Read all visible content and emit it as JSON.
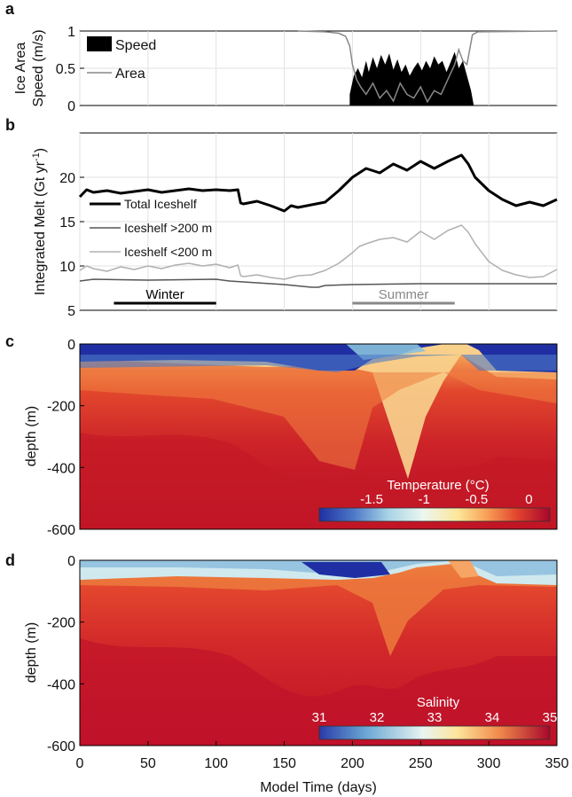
{
  "chart_data": [
    {
      "panel": "a",
      "type": "area",
      "ylabel_line1": "Ice Area",
      "ylabel_line2": "Speed (m/s)",
      "ylim": [
        0,
        1
      ],
      "yticks": [
        "0",
        "0.5",
        "1"
      ],
      "xlim": [
        0,
        350
      ],
      "grid": true,
      "legend_position": "top-left",
      "series": [
        {
          "name": "Speed",
          "style": "filled",
          "color": "#000000",
          "x": [
            198,
            201,
            204,
            207,
            210,
            212,
            215,
            218,
            221,
            224,
            227,
            230,
            233,
            236,
            239,
            242,
            245,
            248,
            251,
            254,
            257,
            260,
            263,
            266,
            269,
            272,
            275,
            278,
            281,
            284,
            287,
            289
          ],
          "y": [
            0.15,
            0.4,
            0.5,
            0.38,
            0.6,
            0.45,
            0.65,
            0.5,
            0.68,
            0.55,
            0.7,
            0.48,
            0.62,
            0.45,
            0.55,
            0.4,
            0.5,
            0.58,
            0.47,
            0.6,
            0.5,
            0.66,
            0.55,
            0.6,
            0.45,
            0.58,
            0.72,
            0.5,
            0.6,
            0.4,
            0.2,
            0.0
          ]
        },
        {
          "name": "Area",
          "style": "line",
          "color": "#888888",
          "x": [
            160,
            180,
            190,
            195,
            198,
            200,
            203,
            206,
            210,
            215,
            220,
            225,
            230,
            235,
            240,
            245,
            250,
            255,
            260,
            265,
            270,
            275,
            278,
            281,
            284,
            286,
            288,
            292,
            350
          ],
          "y": [
            1.0,
            0.99,
            0.97,
            0.93,
            0.8,
            0.55,
            0.35,
            0.25,
            0.15,
            0.3,
            0.1,
            0.2,
            0.06,
            0.3,
            0.15,
            0.1,
            0.25,
            0.05,
            0.2,
            0.15,
            0.35,
            0.55,
            0.75,
            0.6,
            0.55,
            0.75,
            0.95,
            0.99,
            1.0
          ]
        }
      ]
    },
    {
      "panel": "b",
      "type": "line",
      "ylabel": "Integrated Melt (Gt yr",
      "ylabel_exp": "-1",
      "ylabel_close": ")",
      "ylim": [
        5,
        25
      ],
      "yticks": [
        "5",
        "10",
        "15",
        "20"
      ],
      "xlim": [
        0,
        350
      ],
      "grid": true,
      "legend_position": "center-left",
      "series": [
        {
          "name": "Total Iceshelf",
          "color": "#000000",
          "x": [
            0,
            5,
            10,
            20,
            30,
            40,
            50,
            60,
            70,
            80,
            90,
            100,
            110,
            116,
            118,
            120,
            130,
            140,
            150,
            155,
            160,
            170,
            180,
            190,
            200,
            210,
            220,
            230,
            240,
            250,
            260,
            270,
            280,
            285,
            290,
            300,
            310,
            320,
            330,
            340,
            350
          ],
          "y": [
            17.8,
            18.6,
            18.3,
            18.5,
            18.2,
            18.4,
            18.6,
            18.3,
            18.5,
            18.7,
            18.5,
            18.6,
            18.5,
            18.6,
            17.1,
            17.0,
            17.3,
            16.8,
            16.2,
            16.8,
            16.6,
            16.9,
            17.2,
            18.5,
            20.0,
            21.0,
            20.5,
            21.5,
            20.8,
            21.8,
            21.0,
            21.8,
            22.5,
            21.5,
            20.0,
            18.5,
            17.5,
            16.8,
            17.2,
            16.8,
            17.5
          ]
        },
        {
          "name": "Iceshelf >200 m",
          "color": "#555555",
          "x": [
            0,
            10,
            50,
            100,
            110,
            120,
            150,
            170,
            175,
            180,
            200,
            250,
            300,
            350
          ],
          "y": [
            8.3,
            8.5,
            8.4,
            8.5,
            8.3,
            8.2,
            7.9,
            7.6,
            7.6,
            7.8,
            7.9,
            8.0,
            8.0,
            8.0
          ]
        },
        {
          "name": "Iceshelf <200 m",
          "color": "#b0b0b0",
          "x": [
            0,
            5,
            10,
            20,
            30,
            40,
            50,
            60,
            70,
            80,
            90,
            100,
            110,
            116,
            118,
            120,
            130,
            140,
            150,
            160,
            170,
            180,
            190,
            200,
            205,
            210,
            220,
            230,
            240,
            250,
            260,
            270,
            280,
            285,
            290,
            300,
            310,
            320,
            330,
            340,
            350
          ],
          "y": [
            9.5,
            10.0,
            9.7,
            9.4,
            9.9,
            9.6,
            10.0,
            9.7,
            10.1,
            10.3,
            10.0,
            10.2,
            9.8,
            10.1,
            8.9,
            8.8,
            9.0,
            8.7,
            8.5,
            8.9,
            9.0,
            9.5,
            10.3,
            11.5,
            12.2,
            12.5,
            13.0,
            13.2,
            12.7,
            13.9,
            13.0,
            14.0,
            14.6,
            13.8,
            12.5,
            10.5,
            9.5,
            9.0,
            8.7,
            8.8,
            9.6
          ]
        }
      ],
      "annotations": [
        {
          "label": "Winter",
          "x_start": 25,
          "x_end": 100,
          "y": 5.8,
          "color": "#000000"
        },
        {
          "label": "Summer",
          "x_start": 200,
          "x_end": 275,
          "y": 5.8,
          "color": "#888888"
        }
      ]
    },
    {
      "panel": "c",
      "type": "heatmap",
      "ylabel": "depth (m)",
      "ylim": [
        -600,
        0
      ],
      "yticks": [
        "0",
        "-200",
        "-400",
        "-600"
      ],
      "xlim": [
        0,
        350
      ],
      "colorbar": {
        "title": "Temperature (°C)",
        "range": [
          -2,
          0.2
        ],
        "tick_values": [
          -1.5,
          -1,
          -0.5,
          0
        ],
        "ticks": [
          "-1.5",
          "-1",
          "-0.5",
          "0"
        ]
      },
      "description_note": "cold surface layer about 30-80 m, warm water below; warmest and deepest mixing around days 200-300"
    },
    {
      "panel": "d",
      "type": "heatmap",
      "ylabel": "depth (m)",
      "ylim": [
        -600,
        0
      ],
      "yticks": [
        "0",
        "-200",
        "-400",
        "-600"
      ],
      "xlim": [
        0,
        350
      ],
      "xlabel": "Model Time (days)",
      "xticks": [
        "0",
        "50",
        "100",
        "150",
        "200",
        "250",
        "300",
        "350"
      ],
      "colorbar": {
        "title": "Salinity",
        "range": [
          31,
          35
        ],
        "tick_values": [
          31,
          32,
          33,
          34,
          35
        ],
        "ticks": [
          "31",
          "32",
          "33",
          "34",
          "35"
        ]
      },
      "description_note": "fresh surface layer about 30-60 m, saltier water below"
    }
  ],
  "panel_labels": [
    "a",
    "b",
    "c",
    "d"
  ]
}
